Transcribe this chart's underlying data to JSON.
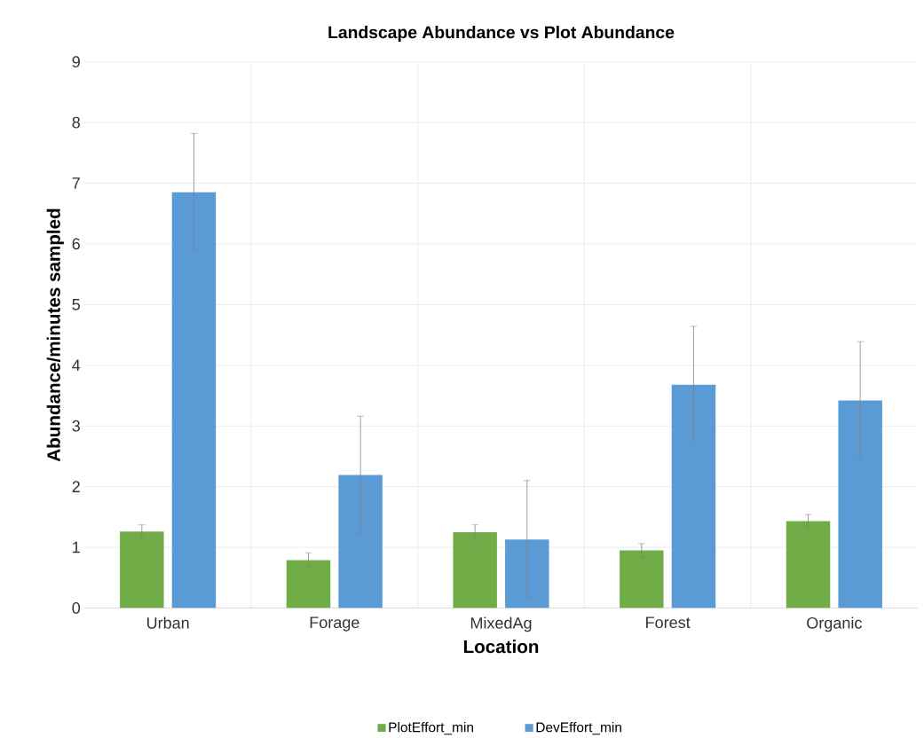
{
  "chart_data": {
    "type": "bar",
    "title": "Landscape Abundance vs Plot Abundance",
    "xlabel": "Location",
    "ylabel": "Abundance/minutes sampled",
    "categories": [
      "Urban",
      "Forage",
      "MixedAg",
      "Forest",
      "Organic"
    ],
    "series": [
      {
        "name": "PlotEffort_min",
        "color": "#70ad47",
        "values": [
          1.26,
          0.79,
          1.25,
          0.95,
          1.43
        ],
        "errors": [
          0.11,
          0.12,
          0.12,
          0.11,
          0.11
        ]
      },
      {
        "name": "DevEffort_min",
        "color": "#5b9bd5",
        "values": [
          6.85,
          2.19,
          1.13,
          3.68,
          3.42
        ],
        "errors": [
          0.97,
          0.97,
          0.97,
          0.96,
          0.97
        ]
      }
    ],
    "ylim": [
      0,
      9
    ],
    "yticks": [
      0,
      1,
      2,
      3,
      4,
      5,
      6,
      7,
      8,
      9
    ],
    "grid": true,
    "legend": "bottom"
  }
}
